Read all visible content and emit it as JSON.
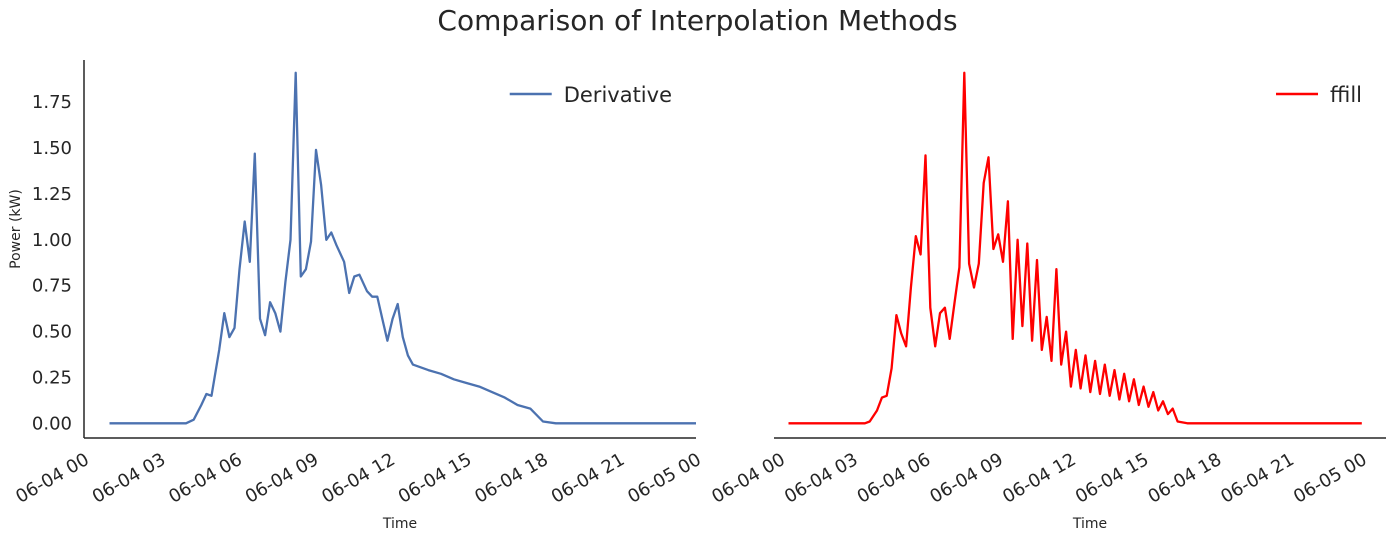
{
  "title": "Comparison of Interpolation Methods",
  "chart_data": [
    {
      "type": "line",
      "series": [
        {
          "name": "Derivative",
          "color": "#4c72b0",
          "points": [
            [
              1.0,
              0.0
            ],
            [
              1.5,
              0.0
            ],
            [
              2.0,
              0.0
            ],
            [
              2.5,
              0.0
            ],
            [
              3.0,
              0.0
            ],
            [
              3.5,
              0.0
            ],
            [
              4.0,
              0.0
            ],
            [
              4.3,
              0.02
            ],
            [
              4.6,
              0.1
            ],
            [
              4.8,
              0.16
            ],
            [
              5.0,
              0.15
            ],
            [
              5.3,
              0.4
            ],
            [
              5.5,
              0.6
            ],
            [
              5.7,
              0.47
            ],
            [
              5.9,
              0.52
            ],
            [
              6.1,
              0.84
            ],
            [
              6.3,
              1.1
            ],
            [
              6.5,
              0.88
            ],
            [
              6.7,
              1.47
            ],
            [
              6.9,
              0.57
            ],
            [
              7.1,
              0.48
            ],
            [
              7.3,
              0.66
            ],
            [
              7.5,
              0.6
            ],
            [
              7.7,
              0.5
            ],
            [
              7.9,
              0.77
            ],
            [
              8.1,
              1.0
            ],
            [
              8.3,
              1.91
            ],
            [
              8.5,
              0.8
            ],
            [
              8.7,
              0.84
            ],
            [
              8.9,
              0.99
            ],
            [
              9.1,
              1.49
            ],
            [
              9.3,
              1.3
            ],
            [
              9.5,
              1.0
            ],
            [
              9.7,
              1.04
            ],
            [
              9.9,
              0.97
            ],
            [
              10.2,
              0.88
            ],
            [
              10.4,
              0.71
            ],
            [
              10.6,
              0.8
            ],
            [
              10.8,
              0.81
            ],
            [
              11.1,
              0.72
            ],
            [
              11.3,
              0.69
            ],
            [
              11.5,
              0.69
            ],
            [
              11.7,
              0.57
            ],
            [
              11.9,
              0.45
            ],
            [
              12.1,
              0.57
            ],
            [
              12.3,
              0.65
            ],
            [
              12.5,
              0.47
            ],
            [
              12.7,
              0.37
            ],
            [
              12.9,
              0.32
            ],
            [
              13.5,
              0.29
            ],
            [
              14.0,
              0.27
            ],
            [
              14.5,
              0.24
            ],
            [
              15.0,
              0.22
            ],
            [
              15.5,
              0.2
            ],
            [
              16.0,
              0.17
            ],
            [
              16.5,
              0.14
            ],
            [
              17.0,
              0.1
            ],
            [
              17.5,
              0.08
            ],
            [
              18.0,
              0.01
            ],
            [
              18.5,
              0.0
            ],
            [
              19.0,
              0.0
            ],
            [
              20.0,
              0.0
            ],
            [
              21.0,
              0.0
            ],
            [
              22.0,
              0.0
            ],
            [
              23.0,
              0.0
            ],
            [
              24.0,
              0.0
            ]
          ]
        }
      ],
      "xlabel": "Time",
      "ylabel": "Power (kW)",
      "xlim": [
        0,
        24
      ],
      "ylim": [
        -0.08,
        1.98
      ],
      "x_ticks": [
        "06-04 00",
        "06-04 03",
        "06-04 06",
        "06-04 09",
        "06-04 12",
        "06-04 15",
        "06-04 18",
        "06-04 21",
        "06-05 00"
      ],
      "y_ticks": [
        "0.00",
        "0.25",
        "0.50",
        "0.75",
        "1.00",
        "1.25",
        "1.50",
        "1.75"
      ],
      "legend": "top-right",
      "grid": false
    },
    {
      "type": "line",
      "series": [
        {
          "name": "ffill",
          "color": "#ff0000",
          "points": [
            [
              0.35,
              0.0
            ],
            [
              1.0,
              0.0
            ],
            [
              1.5,
              0.0
            ],
            [
              2.0,
              0.0
            ],
            [
              2.5,
              0.0
            ],
            [
              3.0,
              0.0
            ],
            [
              3.5,
              0.0
            ],
            [
              3.7,
              0.01
            ],
            [
              4.0,
              0.07
            ],
            [
              4.2,
              0.14
            ],
            [
              4.4,
              0.15
            ],
            [
              4.6,
              0.3
            ],
            [
              4.8,
              0.59
            ],
            [
              5.0,
              0.49
            ],
            [
              5.2,
              0.42
            ],
            [
              5.4,
              0.74
            ],
            [
              5.6,
              1.02
            ],
            [
              5.8,
              0.92
            ],
            [
              6.0,
              1.46
            ],
            [
              6.2,
              0.63
            ],
            [
              6.4,
              0.42
            ],
            [
              6.6,
              0.6
            ],
            [
              6.8,
              0.63
            ],
            [
              7.0,
              0.46
            ],
            [
              7.2,
              0.66
            ],
            [
              7.4,
              0.85
            ],
            [
              7.6,
              1.91
            ],
            [
              7.8,
              0.87
            ],
            [
              8.0,
              0.74
            ],
            [
              8.2,
              0.87
            ],
            [
              8.4,
              1.31
            ],
            [
              8.6,
              1.45
            ],
            [
              8.8,
              0.95
            ],
            [
              9.0,
              1.03
            ],
            [
              9.2,
              0.88
            ],
            [
              9.4,
              1.21
            ],
            [
              9.6,
              0.46
            ],
            [
              9.8,
              1.0
            ],
            [
              10.0,
              0.53
            ],
            [
              10.2,
              0.98
            ],
            [
              10.4,
              0.45
            ],
            [
              10.6,
              0.89
            ],
            [
              10.8,
              0.4
            ],
            [
              11.0,
              0.58
            ],
            [
              11.2,
              0.34
            ],
            [
              11.4,
              0.84
            ],
            [
              11.6,
              0.32
            ],
            [
              11.8,
              0.5
            ],
            [
              12.0,
              0.2
            ],
            [
              12.2,
              0.4
            ],
            [
              12.4,
              0.19
            ],
            [
              12.6,
              0.37
            ],
            [
              12.8,
              0.17
            ],
            [
              13.0,
              0.34
            ],
            [
              13.2,
              0.16
            ],
            [
              13.4,
              0.32
            ],
            [
              13.6,
              0.15
            ],
            [
              13.8,
              0.29
            ],
            [
              14.0,
              0.13
            ],
            [
              14.2,
              0.27
            ],
            [
              14.4,
              0.12
            ],
            [
              14.6,
              0.24
            ],
            [
              14.8,
              0.1
            ],
            [
              15.0,
              0.2
            ],
            [
              15.2,
              0.09
            ],
            [
              15.4,
              0.17
            ],
            [
              15.6,
              0.07
            ],
            [
              15.8,
              0.12
            ],
            [
              16.0,
              0.05
            ],
            [
              16.2,
              0.08
            ],
            [
              16.4,
              0.01
            ],
            [
              16.8,
              0.0
            ],
            [
              17.5,
              0.0
            ],
            [
              18.0,
              0.0
            ],
            [
              19.0,
              0.0
            ],
            [
              20.0,
              0.0
            ],
            [
              21.0,
              0.0
            ],
            [
              22.0,
              0.0
            ],
            [
              23.0,
              0.0
            ],
            [
              24.0,
              0.0
            ]
          ]
        }
      ],
      "xlabel": "Time",
      "ylabel": "",
      "xlim": [
        -0.25,
        25.0
      ],
      "ylim": [
        -0.08,
        1.98
      ],
      "x_ticks": [
        "06-04 00",
        "06-04 03",
        "06-04 06",
        "06-04 09",
        "06-04 12",
        "06-04 15",
        "06-04 18",
        "06-04 21",
        "06-05 00"
      ],
      "y_ticks": [],
      "legend": "top-right",
      "grid": false
    }
  ]
}
